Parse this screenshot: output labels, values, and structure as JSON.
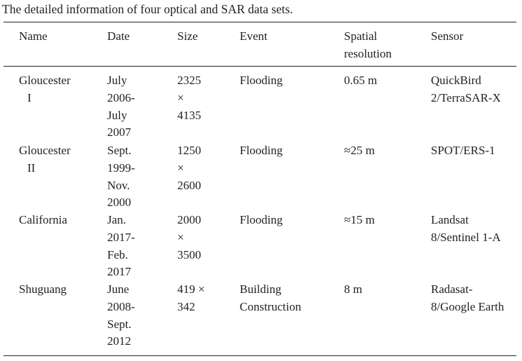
{
  "caption": "The detailed information of four optical and SAR data sets.",
  "table": {
    "header": [
      "Name",
      "Date",
      "Size",
      "Event",
      "Spatial resolution",
      "Sensor"
    ],
    "rows": [
      [
        "Gloucester I",
        "July 2006-July 2007",
        "2325 × 4135",
        "Flooding",
        "0.65 m",
        "QuickBird 2/TerraSAR-X"
      ],
      [
        "Gloucester II",
        "Sept. 1999-Nov. 2000",
        "1250 × 2600",
        "Flooding",
        "≈25 m",
        "SPOT/ERS-1"
      ],
      [
        "California",
        "Jan. 2017-Feb. 2017",
        "2000 × 3500",
        "Flooding",
        "≈15 m",
        "Landsat 8/Sentinel 1-A"
      ],
      [
        "Shuguang",
        "June 2008-Sept. 2012",
        "419 × 342",
        "Building Construction",
        "8 m",
        "Radasat-8/Google Earth"
      ]
    ]
  }
}
